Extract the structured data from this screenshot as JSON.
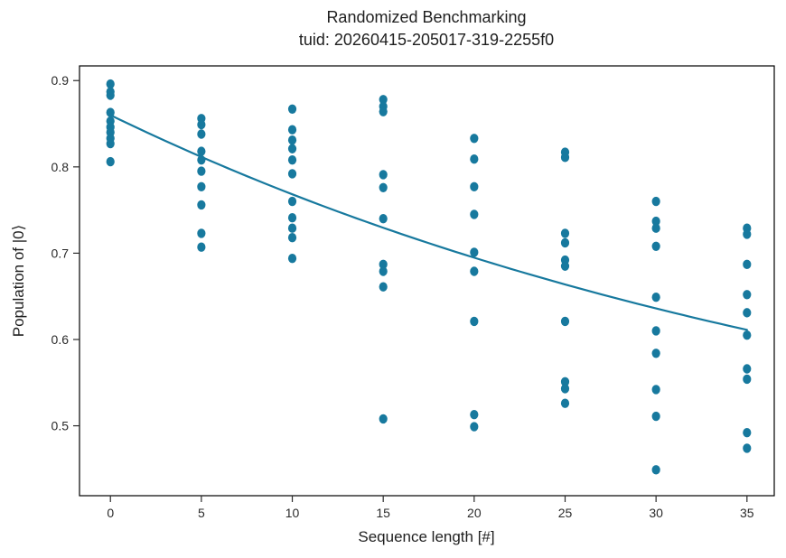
{
  "chart_data": {
    "type": "scatter",
    "title": "Randomized Benchmarking",
    "subtitle": "tuid: 20260415-205017-319-2255f0",
    "xlabel": "Sequence length [#]",
    "ylabel": "Population of |0⟩",
    "x_ticks": [
      0,
      5,
      10,
      15,
      20,
      25,
      30,
      35
    ],
    "y_ticks": [
      0.5,
      0.6,
      0.7,
      0.8,
      0.9
    ],
    "xlim": [
      -1.7,
      36.5
    ],
    "ylim": [
      0.419,
      0.917
    ],
    "grid": false,
    "legend": "none",
    "point_color": "#17799e",
    "fit_color": "#17799e",
    "series": [
      {
        "name": "measured-populations",
        "points": [
          [
            0,
            0.896
          ],
          [
            0,
            0.887
          ],
          [
            0,
            0.883
          ],
          [
            0,
            0.863
          ],
          [
            0,
            0.853
          ],
          [
            0,
            0.846
          ],
          [
            0,
            0.84
          ],
          [
            0,
            0.833
          ],
          [
            0,
            0.827
          ],
          [
            0,
            0.806
          ],
          [
            5,
            0.856
          ],
          [
            5,
            0.849
          ],
          [
            5,
            0.838
          ],
          [
            5,
            0.818
          ],
          [
            5,
            0.808
          ],
          [
            5,
            0.795
          ],
          [
            5,
            0.777
          ],
          [
            5,
            0.756
          ],
          [
            5,
            0.723
          ],
          [
            5,
            0.707
          ],
          [
            10,
            0.867
          ],
          [
            10,
            0.843
          ],
          [
            10,
            0.831
          ],
          [
            10,
            0.821
          ],
          [
            10,
            0.808
          ],
          [
            10,
            0.792
          ],
          [
            10,
            0.76
          ],
          [
            10,
            0.741
          ],
          [
            10,
            0.729
          ],
          [
            10,
            0.718
          ],
          [
            10,
            0.694
          ],
          [
            15,
            0.878
          ],
          [
            15,
            0.87
          ],
          [
            15,
            0.864
          ],
          [
            15,
            0.791
          ],
          [
            15,
            0.776
          ],
          [
            15,
            0.74
          ],
          [
            15,
            0.687
          ],
          [
            15,
            0.679
          ],
          [
            15,
            0.661
          ],
          [
            15,
            0.508
          ],
          [
            20,
            0.833
          ],
          [
            20,
            0.809
          ],
          [
            20,
            0.777
          ],
          [
            20,
            0.745
          ],
          [
            20,
            0.701
          ],
          [
            20,
            0.679
          ],
          [
            20,
            0.621
          ],
          [
            20,
            0.513
          ],
          [
            20,
            0.499
          ],
          [
            25,
            0.817
          ],
          [
            25,
            0.811
          ],
          [
            25,
            0.723
          ],
          [
            25,
            0.712
          ],
          [
            25,
            0.692
          ],
          [
            25,
            0.685
          ],
          [
            25,
            0.621
          ],
          [
            25,
            0.551
          ],
          [
            25,
            0.543
          ],
          [
            25,
            0.526
          ],
          [
            30,
            0.76
          ],
          [
            30,
            0.737
          ],
          [
            30,
            0.729
          ],
          [
            30,
            0.708
          ],
          [
            30,
            0.649
          ],
          [
            30,
            0.61
          ],
          [
            30,
            0.584
          ],
          [
            30,
            0.542
          ],
          [
            30,
            0.511
          ],
          [
            30,
            0.449
          ],
          [
            35,
            0.729
          ],
          [
            35,
            0.722
          ],
          [
            35,
            0.687
          ],
          [
            35,
            0.652
          ],
          [
            35,
            0.631
          ],
          [
            35,
            0.605
          ],
          [
            35,
            0.566
          ],
          [
            35,
            0.554
          ],
          [
            35,
            0.492
          ],
          [
            35,
            0.474
          ]
        ]
      }
    ],
    "fit": {
      "type": "exponential_decay",
      "model": "y = a * f^x + b",
      "a": 0.46,
      "f": 0.978,
      "b": 0.4,
      "x_range": [
        0,
        35
      ],
      "y_start": 0.86,
      "y_end": 0.611
    }
  }
}
